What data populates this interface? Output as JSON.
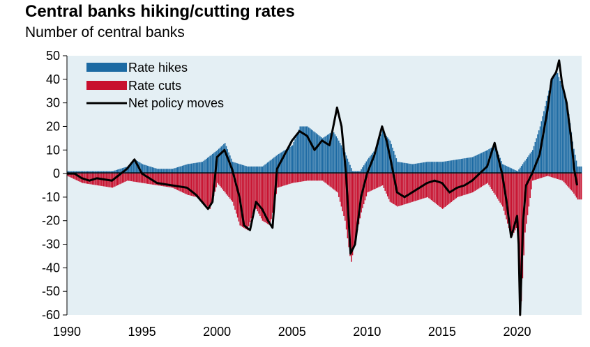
{
  "chart_data": {
    "type": "bar",
    "title": "Central banks hiking/cutting rates",
    "subtitle": "Number of central banks",
    "ylim": [
      -60,
      50
    ],
    "xlim": [
      1990,
      2024.3
    ],
    "yticks": [
      "50",
      "40",
      "30",
      "20",
      "10",
      "0",
      "-10",
      "-20",
      "-30",
      "-40",
      "-50",
      "-60"
    ],
    "xticks": [
      "1990",
      "1995",
      "2000",
      "2005",
      "2010",
      "2015",
      "2020"
    ],
    "grid": false,
    "legend_placement": "top-left",
    "colors": {
      "hikes": "#1c6aa3",
      "cuts": "#c8102e",
      "net": "#000000",
      "plot_bg": "#e4eff4"
    },
    "series": [
      {
        "name": "Rate hikes",
        "x": [
          1990.0,
          1991.0,
          1992.0,
          1993.0,
          1994.0,
          1994.5,
          1995.0,
          1996.0,
          1997.0,
          1998.0,
          1999.0,
          2000.0,
          2000.5,
          2001.0,
          2002.0,
          2003.0,
          2004.0,
          2005.0,
          2005.5,
          2006.0,
          2007.0,
          2007.7,
          2008.0,
          2008.5,
          2009.0,
          2009.5,
          2010.0,
          2010.5,
          2011.0,
          2011.5,
          2012.0,
          2013.0,
          2014.0,
          2015.0,
          2016.0,
          2017.0,
          2018.0,
          2018.5,
          2019.0,
          2020.0,
          2021.0,
          2021.5,
          2022.0,
          2022.3,
          2022.6,
          2023.0,
          2023.4,
          2023.7,
          2024.0
        ],
        "values": [
          1,
          1,
          1,
          1,
          3,
          6,
          4,
          2,
          2,
          4,
          5,
          10,
          13,
          5,
          3,
          3,
          8,
          12,
          20,
          20,
          15,
          18,
          15,
          9,
          1,
          1,
          6,
          10,
          18,
          14,
          5,
          4,
          5,
          5,
          6,
          7,
          10,
          12,
          4,
          1,
          10,
          20,
          33,
          41,
          44,
          36,
          26,
          12,
          3
        ]
      },
      {
        "name": "Rate cuts",
        "x": [
          1990.0,
          1991.0,
          1992.0,
          1993.0,
          1994.0,
          1995.0,
          1996.0,
          1997.0,
          1998.0,
          1998.6,
          1999.0,
          1999.5,
          2000.0,
          2001.0,
          2001.5,
          2002.0,
          2002.5,
          2003.0,
          2003.5,
          2004.0,
          2005.0,
          2006.0,
          2007.0,
          2008.0,
          2008.5,
          2008.9,
          2009.2,
          2009.6,
          2010.0,
          2011.0,
          2011.5,
          2012.0,
          2013.0,
          2014.0,
          2015.0,
          2016.0,
          2017.0,
          2018.0,
          2019.0,
          2019.6,
          2020.0,
          2020.2,
          2020.5,
          2021.0,
          2022.0,
          2023.0,
          2023.7,
          2024.0
        ],
        "values": [
          -1,
          -4,
          -5,
          -6,
          -3,
          -4,
          -5,
          -6,
          -9,
          -10,
          -12,
          -15,
          -4,
          -12,
          -22,
          -24,
          -14,
          -20,
          -22,
          -6,
          -4,
          -3,
          -3,
          -8,
          -20,
          -38,
          -28,
          -16,
          -8,
          -5,
          -12,
          -14,
          -12,
          -10,
          -15,
          -10,
          -8,
          -4,
          -14,
          -27,
          -22,
          -60,
          -25,
          -3,
          -1,
          -3,
          -8,
          -11
        ]
      },
      {
        "name": "Net policy moves",
        "x": [
          1990.0,
          1990.5,
          1991.0,
          1991.5,
          1992.0,
          1993.0,
          1994.0,
          1994.5,
          1995.0,
          1996.0,
          1997.0,
          1998.0,
          1998.6,
          1999.0,
          1999.4,
          1999.7,
          2000.0,
          2000.5,
          2001.0,
          2001.5,
          2001.8,
          2002.2,
          2002.6,
          2003.0,
          2003.4,
          2003.7,
          2004.0,
          2004.5,
          2005.0,
          2005.5,
          2006.0,
          2006.5,
          2007.0,
          2007.5,
          2008.0,
          2008.3,
          2008.6,
          2008.9,
          2009.2,
          2009.6,
          2010.0,
          2010.5,
          2011.0,
          2011.3,
          2011.6,
          2012.0,
          2012.5,
          2013.0,
          2013.5,
          2014.0,
          2014.5,
          2015.0,
          2015.5,
          2016.0,
          2016.5,
          2017.0,
          2017.5,
          2018.0,
          2018.5,
          2019.0,
          2019.3,
          2019.6,
          2020.0,
          2020.1,
          2020.2,
          2020.4,
          2020.6,
          2021.0,
          2021.5,
          2022.0,
          2022.3,
          2022.6,
          2022.8,
          2023.0,
          2023.3,
          2023.6,
          2023.8,
          2024.0
        ],
        "values": [
          0,
          0,
          -2,
          -3,
          -2,
          -3,
          2,
          6,
          0,
          -4,
          -5,
          -6,
          -9,
          -12,
          -15,
          -12,
          7,
          10,
          2,
          -10,
          -22,
          -24,
          -12,
          -15,
          -20,
          -23,
          2,
          8,
          14,
          18,
          16,
          10,
          14,
          12,
          28,
          20,
          0,
          -34,
          -30,
          -10,
          0,
          8,
          20,
          14,
          5,
          -8,
          -10,
          -8,
          -6,
          -4,
          -3,
          -4,
          -8,
          -6,
          -5,
          -3,
          0,
          3,
          13,
          0,
          -12,
          -27,
          -18,
          -30,
          -60,
          -20,
          -5,
          0,
          8,
          26,
          40,
          43,
          48,
          38,
          30,
          15,
          2,
          -5
        ]
      }
    ]
  }
}
